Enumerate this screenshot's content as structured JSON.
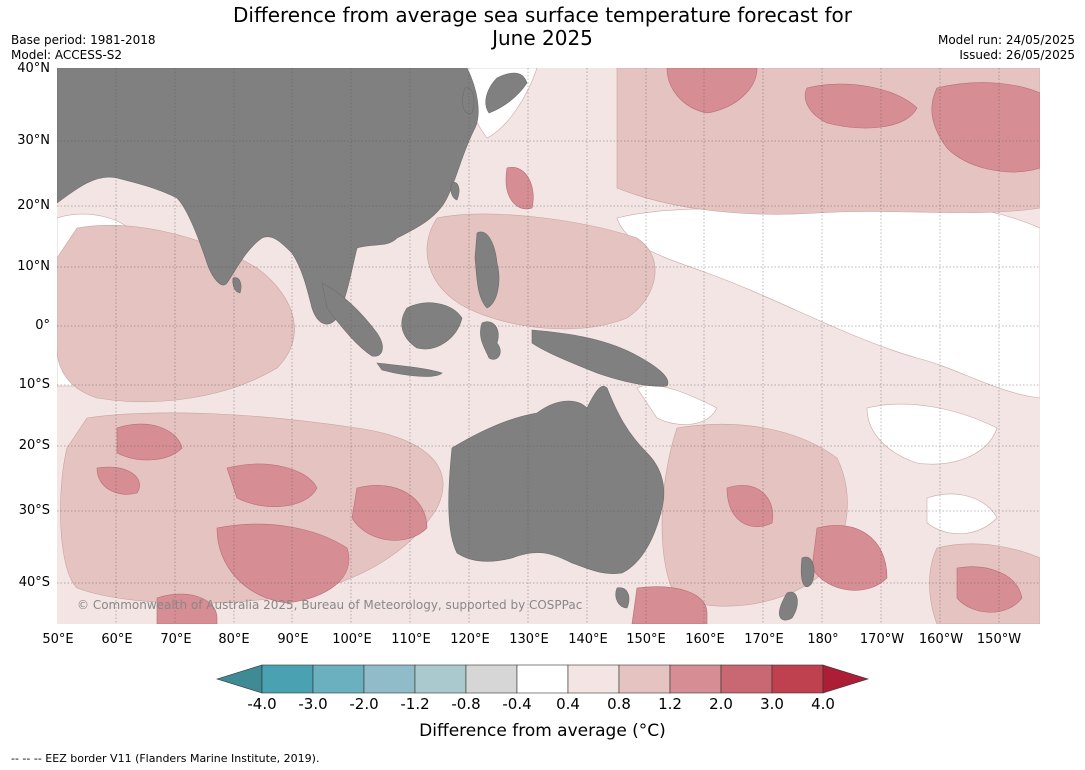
{
  "title_line1": "Difference from average sea surface temperature forecast for",
  "title_line2": "June 2025",
  "base_period": "Base period: 1981-2018",
  "model": "Model: ACCESS-S2",
  "model_run": "Model run: 24/05/2025",
  "issued": "Issued: 26/05/2025",
  "copyright": "© Commonwealth of Australia 2025, Bureau of Meteorology, supported by COSPPac",
  "lat_labels": [
    "40°N",
    "30°N",
    "20°N",
    "10°N",
    "0°",
    "10°S",
    "20°S",
    "30°S",
    "40°S"
  ],
  "lon_labels": [
    "50°E",
    "60°E",
    "70°E",
    "80°E",
    "90°E",
    "100°E",
    "110°E",
    "120°E",
    "130°E",
    "140°E",
    "150°E",
    "160°E",
    "170°E",
    "180°",
    "170°W",
    "160°W",
    "150°W"
  ],
  "colorbar": {
    "ticks": [
      "-4.0",
      "-3.0",
      "-2.0",
      "-1.2",
      "-0.8",
      "-0.4",
      "0.4",
      "0.8",
      "1.2",
      "2.0",
      "3.0",
      "4.0"
    ],
    "colors": [
      "#3e8a95",
      "#4aa1b2",
      "#6ab0be",
      "#8fbcc8",
      "#aac9cd",
      "#d6d6d6",
      "#ffffff",
      "#f3e5e4",
      "#e5c3c1",
      "#d68d94",
      "#c96772",
      "#bf4150",
      "#ab1e35"
    ],
    "label": "Difference from average (°C)"
  },
  "footnote": "--  --  -- EEZ border V11 (Flanders Marine Institute, 2019).",
  "colors": {
    "land": "#808080",
    "ocean_base": "#f3e5e4"
  }
}
